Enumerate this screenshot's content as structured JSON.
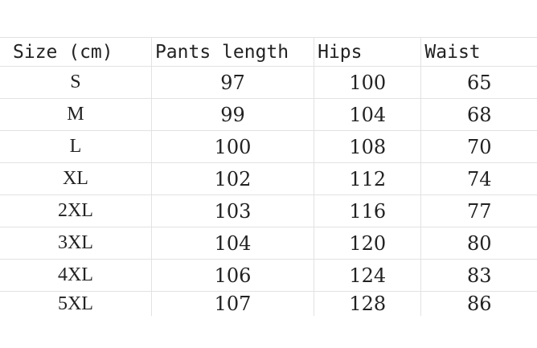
{
  "table": {
    "headers": [
      "Size (cm)",
      "Pants length",
      "Hips",
      "Waist"
    ],
    "rows": [
      [
        "S",
        "97",
        "100",
        "65"
      ],
      [
        "M",
        "99",
        "104",
        "68"
      ],
      [
        "L",
        "100",
        "108",
        "70"
      ],
      [
        "XL",
        "102",
        "112",
        "74"
      ],
      [
        "2XL",
        "103",
        "116",
        "77"
      ],
      [
        "3XL",
        "104",
        "120",
        "80"
      ],
      [
        "4XL",
        "106",
        "124",
        "83"
      ],
      [
        "5XL",
        "107",
        "128",
        "86"
      ]
    ]
  }
}
